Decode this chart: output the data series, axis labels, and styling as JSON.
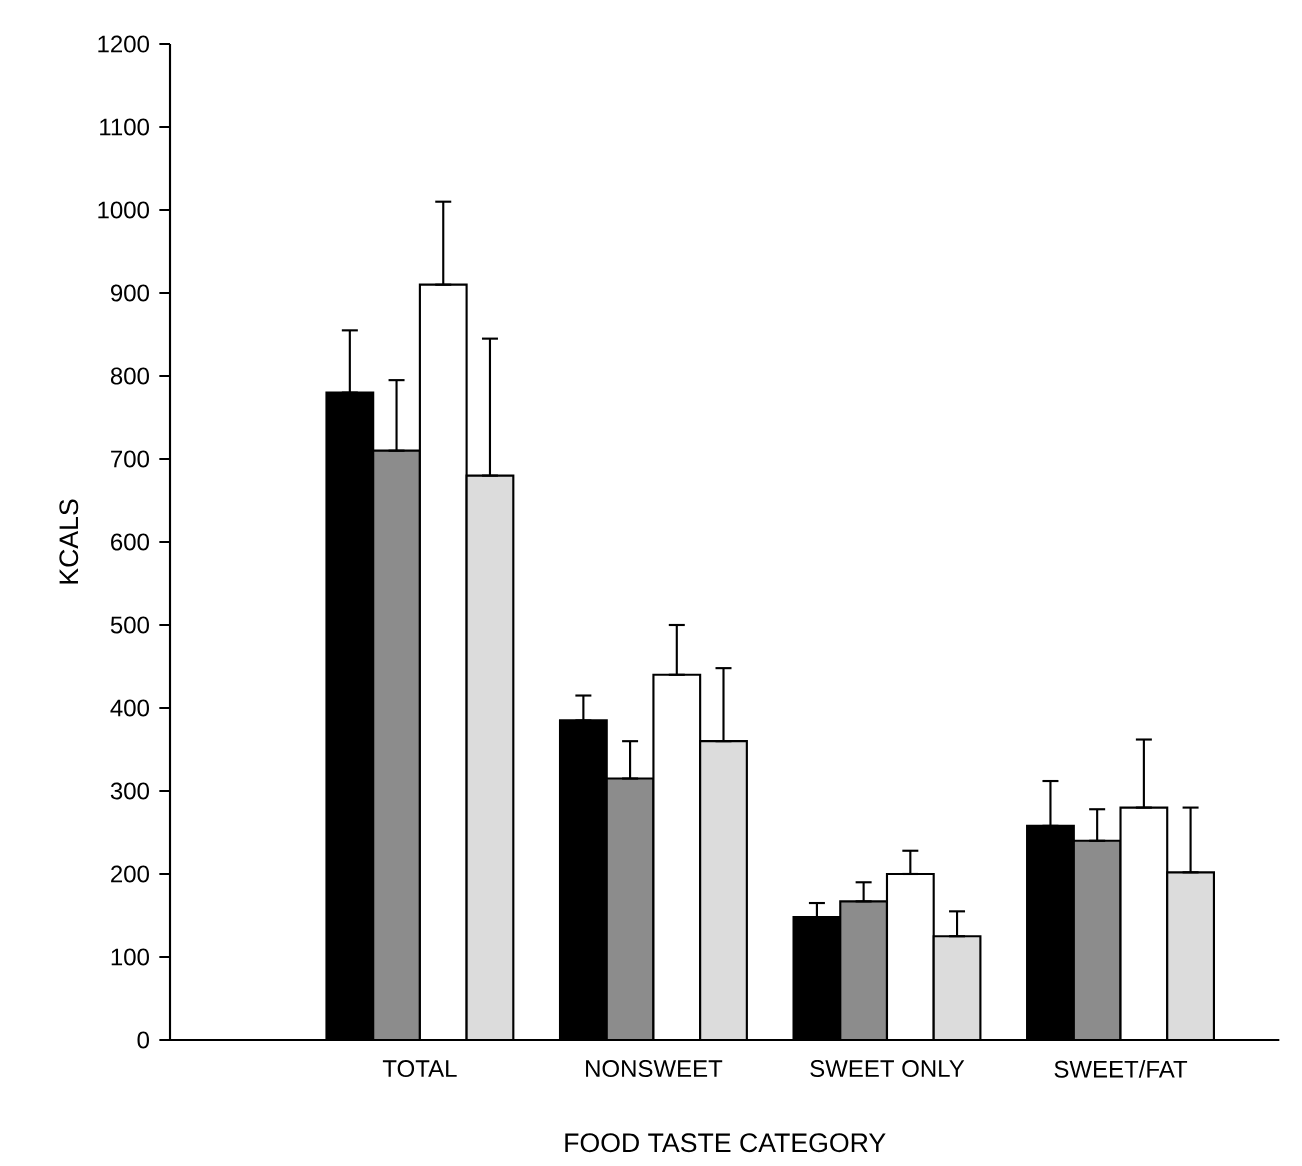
{
  "chart_data": {
    "type": "bar",
    "xlabel": "FOOD TASTE CATEGORY",
    "ylabel": "KCALS",
    "categories": [
      "TOTAL",
      "NONSWEET",
      "SWEET ONLY",
      "SWEET/FAT"
    ],
    "series": [
      {
        "color": "#000000",
        "values": [
          780,
          385,
          148,
          258
        ],
        "errors": [
          [
            780,
            855
          ],
          [
            385,
            415
          ],
          [
            148,
            165
          ],
          [
            258,
            312
          ]
        ]
      },
      {
        "color": "#8c8c8c",
        "values": [
          710,
          315,
          167,
          240
        ],
        "errors": [
          [
            710,
            795
          ],
          [
            315,
            360
          ],
          [
            167,
            190
          ],
          [
            240,
            278
          ]
        ]
      },
      {
        "color": "#ffffff",
        "values": [
          910,
          440,
          200,
          280
        ],
        "errors": [
          [
            910,
            1010
          ],
          [
            440,
            500
          ],
          [
            200,
            228
          ],
          [
            280,
            362
          ]
        ]
      },
      {
        "color": "#dcdcdc",
        "values": [
          680,
          360,
          125,
          202
        ],
        "errors": [
          [
            680,
            845
          ],
          [
            360,
            448
          ],
          [
            125,
            155
          ],
          [
            202,
            280
          ]
        ]
      }
    ],
    "ylim": [
      0,
      1200
    ],
    "yticks": [
      0,
      100,
      200,
      300,
      400,
      500,
      600,
      700,
      800,
      900,
      1000,
      1100,
      1200
    ],
    "grid": false
  }
}
